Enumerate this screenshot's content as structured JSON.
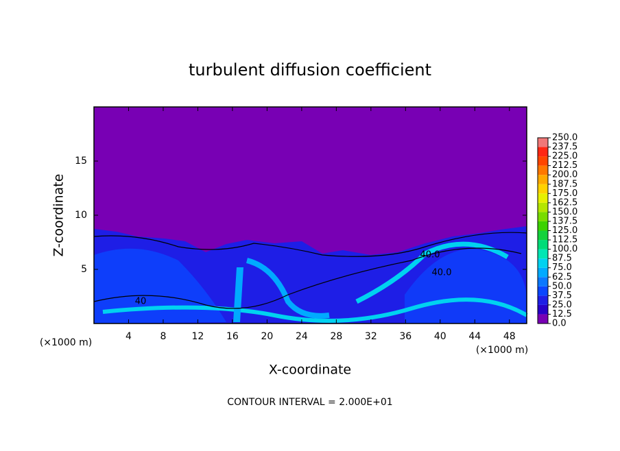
{
  "chart_data": {
    "type": "contour",
    "title": "turbulent diffusion coefficient",
    "x_label": "X-coordinate",
    "y_label": "Z-coordinate",
    "x_unit": "(×1000 m)",
    "y_unit": "(×1000 m)",
    "footer": "CONTOUR INTERVAL = 2.000E+01",
    "contour_labels": [
      "40",
      "40.0",
      "40.0"
    ],
    "xlim": [
      0,
      50
    ],
    "xticks": [
      4,
      8,
      12,
      16,
      20,
      24,
      28,
      32,
      36,
      40,
      44,
      48
    ],
    "ylim": [
      0,
      20
    ],
    "yticks": [
      5,
      10,
      15
    ],
    "colorbar": {
      "levels": [
        {
          "value": 0,
          "label": "0.0"
        },
        {
          "value": 12.5,
          "label": "12.5"
        },
        {
          "value": 25,
          "label": "25.0"
        },
        {
          "value": 37.5,
          "label": "37.5"
        },
        {
          "value": 50,
          "label": "50.0"
        },
        {
          "value": 62.5,
          "label": "62.5"
        },
        {
          "value": 75,
          "label": "75.0"
        },
        {
          "value": 87.5,
          "label": "87.5"
        },
        {
          "value": 100,
          "label": "100.0"
        },
        {
          "value": 112.5,
          "label": "112.5"
        },
        {
          "value": 125,
          "label": "125.0"
        },
        {
          "value": 137.5,
          "label": "137.5"
        },
        {
          "value": 150,
          "label": "150.0"
        },
        {
          "value": 162.5,
          "label": "162.5"
        },
        {
          "value": 175,
          "label": "175.0"
        },
        {
          "value": 187.5,
          "label": "187.5"
        },
        {
          "value": 200,
          "label": "200.0"
        },
        {
          "value": 212.5,
          "label": "212.5"
        },
        {
          "value": 225,
          "label": "225.0"
        },
        {
          "value": 237.5,
          "label": "237.5"
        },
        {
          "value": 250,
          "label": "250.0"
        }
      ],
      "colors": [
        "#7800b4",
        "#2800c8",
        "#1e1ee6",
        "#0a46ff",
        "#0a78ff",
        "#00aaff",
        "#00d2f0",
        "#00e6b4",
        "#00dc78",
        "#14d23c",
        "#3cd200",
        "#78dc00",
        "#b4e600",
        "#e6f000",
        "#ffd200",
        "#ffaa00",
        "#ff7800",
        "#ff4600",
        "#ff2814",
        "#f07878"
      ]
    }
  }
}
